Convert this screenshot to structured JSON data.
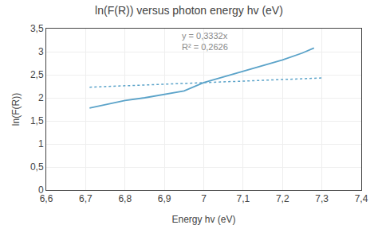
{
  "chart_data": {
    "type": "line",
    "title": "ln(F(R)) versus photon energy hv (eV)",
    "x_label": "Energy hv (eV)",
    "y_label": "ln(F(R))",
    "xlim": [
      6.6,
      7.4
    ],
    "ylim": [
      0,
      3.5
    ],
    "xticks": [
      {
        "value": 6.6,
        "label": "6,6"
      },
      {
        "value": 6.7,
        "label": "6,7"
      },
      {
        "value": 6.8,
        "label": "6,8"
      },
      {
        "value": 6.9,
        "label": "6,9"
      },
      7,
      {
        "value": 7.1,
        "label": "7,1"
      },
      {
        "value": 7.2,
        "label": "7,2"
      },
      {
        "value": 7.3,
        "label": "7,3"
      },
      {
        "value": 7.4,
        "label": "7,4"
      }
    ],
    "yticks": [
      0,
      {
        "value": 0.5,
        "label": "0,5"
      },
      1,
      {
        "value": 1.5,
        "label": "1,5"
      },
      2,
      {
        "value": 2.5,
        "label": "2,5"
      },
      3,
      {
        "value": 3.5,
        "label": "3,5"
      }
    ],
    "grid": true,
    "series": [
      {
        "x": [
          6.71,
          6.75,
          6.8,
          6.85,
          6.9,
          6.95,
          7.0,
          7.05,
          7.1,
          7.15,
          7.2,
          7.25,
          7.28
        ],
        "values": [
          1.78,
          1.85,
          1.94,
          2.0,
          2.08,
          2.15,
          2.33,
          2.45,
          2.58,
          2.7,
          2.82,
          2.97,
          3.08
        ],
        "color": "#5ba3c9",
        "line_style": "solid"
      },
      {
        "x": [
          6.71,
          7.3
        ],
        "values": [
          2.23,
          2.43
        ],
        "color": "#5ba3c9",
        "line_style": "dotted"
      }
    ],
    "annotations": [
      {
        "x": 6.94,
        "y": 3.48,
        "text": [
          "y = 0,3332x",
          "R² = 0,2626"
        ]
      }
    ]
  }
}
